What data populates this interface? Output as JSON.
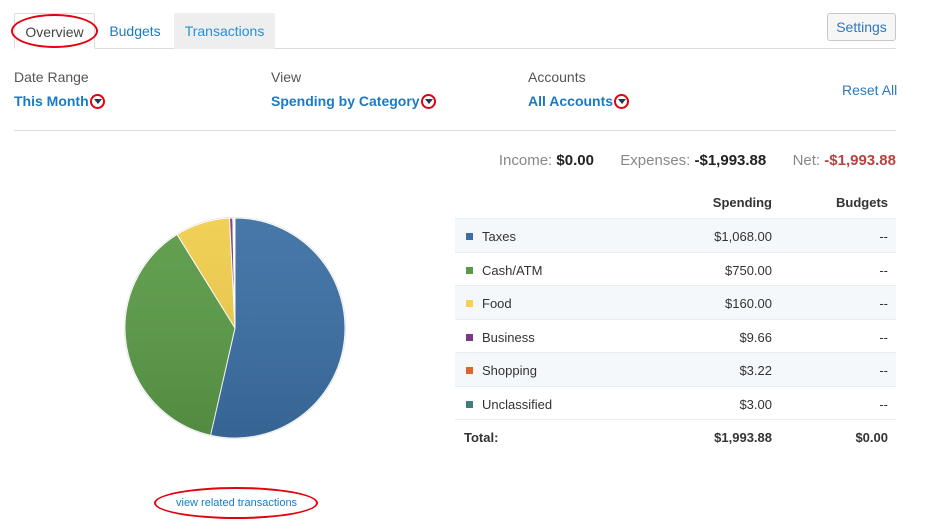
{
  "tabs": [
    {
      "label": "Overview",
      "active": true
    },
    {
      "label": "Budgets",
      "active": false
    },
    {
      "label": "Transactions",
      "active": false
    }
  ],
  "settings_label": "Settings",
  "filters": {
    "date_range": {
      "label": "Date Range",
      "value": "This Month"
    },
    "view": {
      "label": "View",
      "value": "Spending by Category"
    },
    "accounts": {
      "label": "Accounts",
      "value": "All Accounts"
    },
    "reset_label": "Reset All"
  },
  "summary": {
    "income_label": "Income:",
    "income_value": "$0.00",
    "expenses_label": "Expenses:",
    "expenses_value": "-$1,993.88",
    "net_label": "Net:",
    "net_value": "-$1,993.88"
  },
  "table": {
    "headers": {
      "spending": "Spending",
      "budgets": "Budgets"
    },
    "rows": [
      {
        "category": "Taxes",
        "color": "#3b6fa3",
        "spending": "$1,068.00",
        "budget": "--"
      },
      {
        "category": "Cash/ATM",
        "color": "#5a9a47",
        "spending": "$750.00",
        "budget": "--"
      },
      {
        "category": "Food",
        "color": "#f5d24f",
        "spending": "$160.00",
        "budget": "--"
      },
      {
        "category": "Business",
        "color": "#7a3a82",
        "spending": "$9.66",
        "budget": "--"
      },
      {
        "category": "Shopping",
        "color": "#e0632a",
        "spending": "$3.22",
        "budget": "--"
      },
      {
        "category": "Unclassified",
        "color": "#3c7f7b",
        "spending": "$3.00",
        "budget": "--"
      }
    ],
    "total": {
      "label": "Total:",
      "spending": "$1,993.88",
      "budget": "$0.00"
    }
  },
  "chart_data": {
    "type": "pie",
    "title": "Spending by Category",
    "categories": [
      "Taxes",
      "Cash/ATM",
      "Food",
      "Business",
      "Shopping",
      "Unclassified"
    ],
    "values": [
      1068.0,
      750.0,
      160.0,
      9.66,
      3.22,
      3.0
    ],
    "colors": [
      "#3b6fa3",
      "#5a9a47",
      "#f0cd4c",
      "#7a3a82",
      "#e0632a",
      "#3c7f7b"
    ],
    "legend_position": "table-right"
  },
  "view_related_label": "view related transactions"
}
